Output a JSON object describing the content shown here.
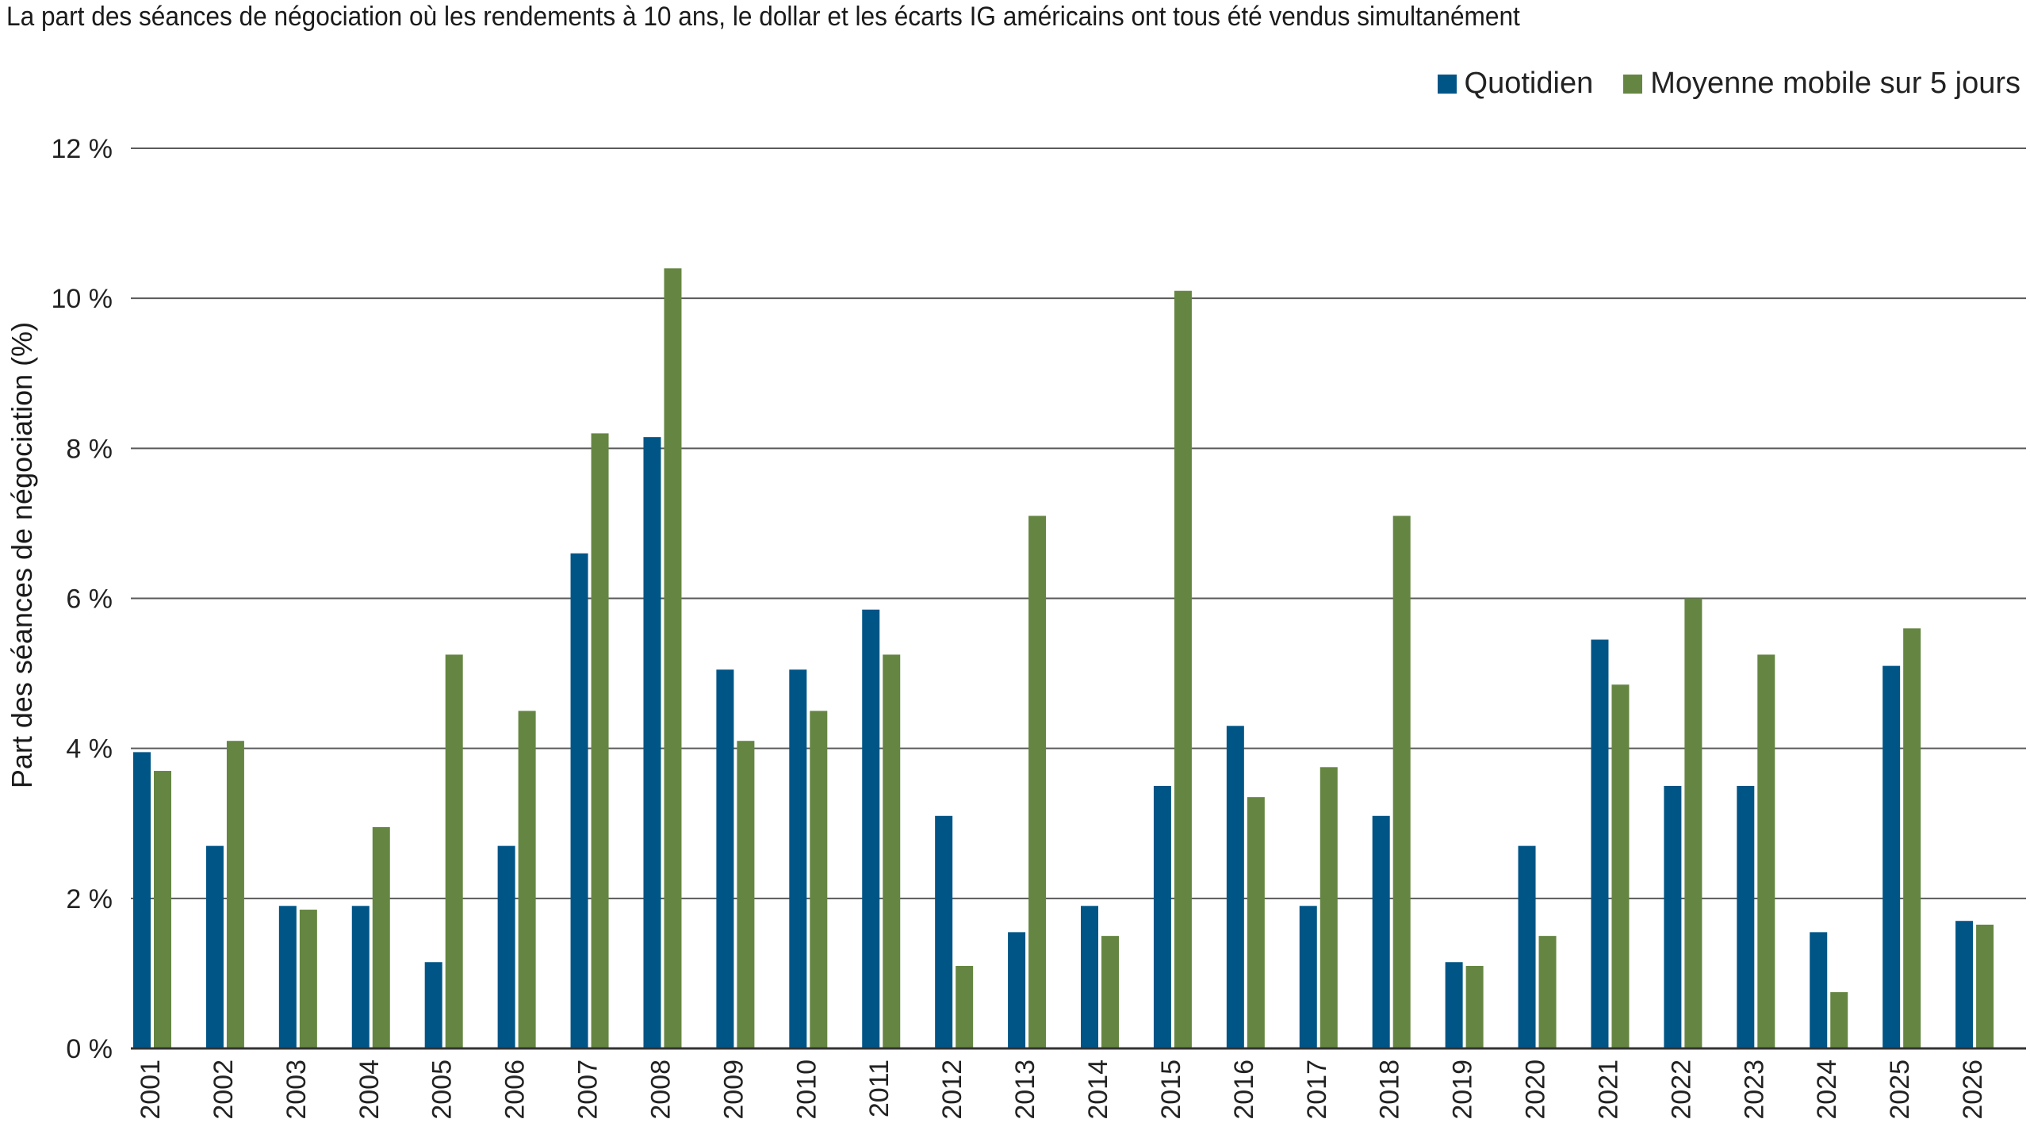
{
  "chart_data": {
    "type": "bar",
    "title": "La part des séances de négociation où les rendements à 10 ans, le dollar et les écarts IG américains ont tous été vendus simultanément",
    "ylabel": "Part des séances de négociation (%)",
    "xlabel": "",
    "ylim": [
      0,
      12
    ],
    "yticks": [
      0,
      2,
      4,
      6,
      8,
      10,
      12
    ],
    "ytick_labels": [
      "0 %",
      "2 %",
      "4 %",
      "6 %",
      "8 %",
      "10 %",
      "12 %"
    ],
    "grid": true,
    "legend_position": "top-right",
    "categories": [
      "2001",
      "2002",
      "2003",
      "2004",
      "2005",
      "2006",
      "2007",
      "2008",
      "2009",
      "2010",
      "2011",
      "2012",
      "2013",
      "2014",
      "2015",
      "2016",
      "2017",
      "2018",
      "2019",
      "2020",
      "2021",
      "2022",
      "2023",
      "2024",
      "2025",
      "2026"
    ],
    "series": [
      {
        "name": "Quotidien",
        "color": "#005587",
        "values": [
          3.95,
          2.7,
          1.9,
          1.9,
          1.15,
          2.7,
          6.6,
          8.15,
          5.05,
          5.05,
          5.85,
          3.1,
          1.55,
          1.9,
          3.5,
          4.3,
          1.9,
          3.1,
          1.15,
          2.7,
          5.45,
          3.5,
          3.5,
          1.55,
          5.1,
          1.7
        ]
      },
      {
        "name": "Moyenne mobile sur 5 jours",
        "color": "#658642",
        "values": [
          3.7,
          4.1,
          1.85,
          2.95,
          5.25,
          4.5,
          8.2,
          10.4,
          4.1,
          4.5,
          5.25,
          1.1,
          7.1,
          1.5,
          10.1,
          3.35,
          3.75,
          7.1,
          1.1,
          1.5,
          4.85,
          6.0,
          5.25,
          0.75,
          5.6,
          1.65
        ]
      }
    ]
  }
}
